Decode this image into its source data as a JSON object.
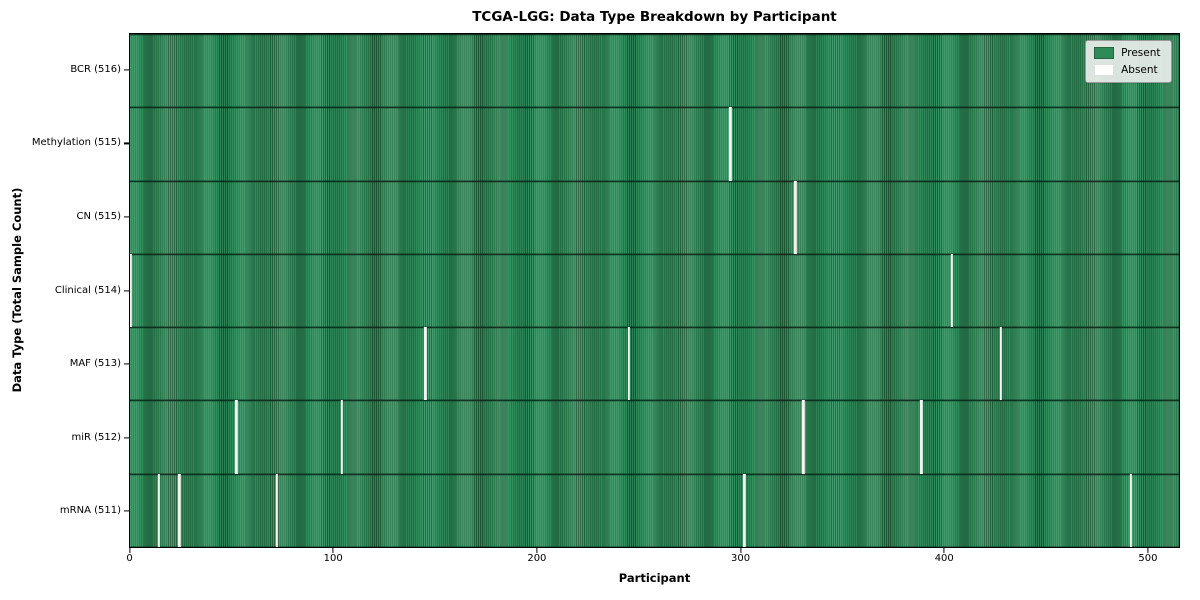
{
  "chart_data": {
    "type": "heatmap",
    "title": "TCGA-LGG: Data Type Breakdown by Participant",
    "xlabel": "Participant",
    "ylabel": "Data Type (Total Sample Count)",
    "x_ticks": [
      0,
      100,
      200,
      300,
      400,
      500
    ],
    "n_participants": 516,
    "x_range": [
      0,
      516
    ],
    "grid": false,
    "colors": {
      "present": "#2e8b57",
      "present_edge": "#1d5c39",
      "absent": "#f3f3f0",
      "row_divider": "#0f2e1d",
      "legend_background": "#e9eeea"
    },
    "legend": {
      "position": "upper right",
      "items": [
        {
          "label": "Present",
          "color": "#2e8b57"
        },
        {
          "label": "Absent",
          "color": "#ffffff"
        }
      ]
    },
    "rows": [
      {
        "label": "BCR (516)",
        "data_type": "BCR",
        "present_count": 516,
        "absent_participants": []
      },
      {
        "label": "Methylation (515)",
        "data_type": "Methylation",
        "present_count": 515,
        "absent_participants": [
          295
        ]
      },
      {
        "label": "CN (515)",
        "data_type": "CN",
        "present_count": 515,
        "absent_participants": [
          327
        ]
      },
      {
        "label": "Clinical (514)",
        "data_type": "Clinical",
        "present_count": 514,
        "absent_participants": [
          0,
          404
        ]
      },
      {
        "label": "MAF (513)",
        "data_type": "MAF",
        "present_count": 513,
        "absent_participants": [
          145,
          245,
          428
        ]
      },
      {
        "label": "miR (512)",
        "data_type": "miR",
        "present_count": 512,
        "absent_participants": [
          52,
          104,
          331,
          389
        ]
      },
      {
        "label": "mRNA (511)",
        "data_type": "mRNA",
        "present_count": 511,
        "absent_participants": [
          14,
          24,
          72,
          302,
          492
        ]
      }
    ]
  }
}
